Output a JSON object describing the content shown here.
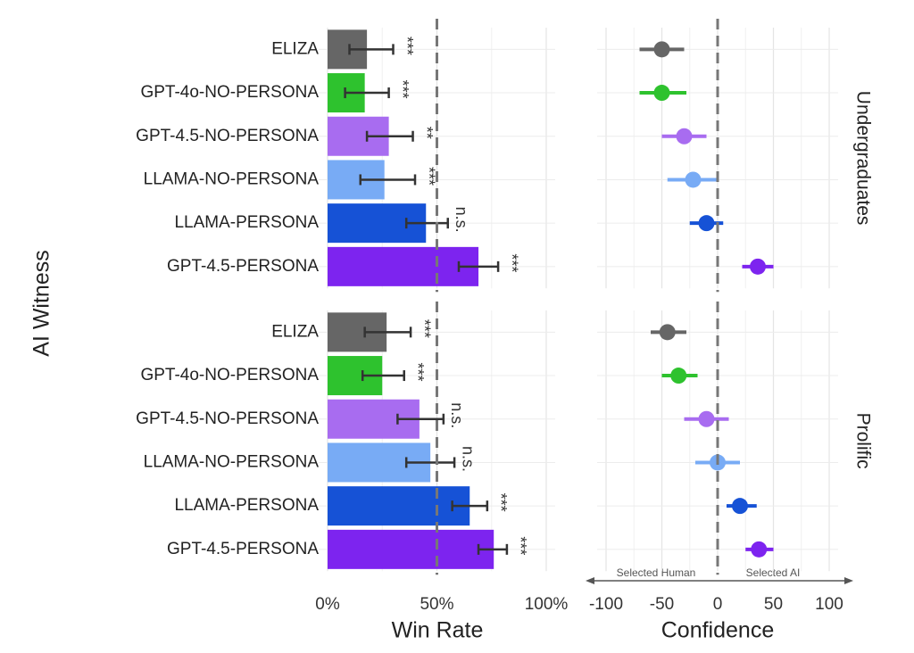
{
  "chart_data": [
    {
      "type": "bar",
      "orientation": "horizontal",
      "xlabel": "Win Rate",
      "ylabel": "AI Witness",
      "xlim": [
        0,
        100
      ],
      "xticks": [
        {
          "value": 0,
          "label": "0%"
        },
        {
          "value": 50,
          "label": "50%"
        },
        {
          "value": 100,
          "label": "100%"
        }
      ],
      "ref_line": 50,
      "colors": [
        "#666666",
        "#2ec22e",
        "#a86cf0",
        "#78abf5",
        "#1652d6",
        "#7d24ef"
      ],
      "facets": [
        {
          "categories": [
            "ELIZA",
            "GPT-4o-NO-PERSONA",
            "GPT-4.5-NO-PERSONA",
            "LLAMA-NO-PERSONA",
            "LLAMA-PERSONA",
            "GPT-4.5-PERSONA"
          ],
          "values": [
            18,
            17,
            28,
            26,
            45,
            69
          ],
          "ci_low": [
            10,
            8,
            18,
            15,
            36,
            60
          ],
          "ci_high": [
            30,
            28,
            39,
            40,
            55,
            78
          ],
          "significance": [
            "***",
            "***",
            "**",
            "***",
            "n.s.",
            "***"
          ]
        },
        {
          "categories": [
            "ELIZA",
            "GPT-4o-NO-PERSONA",
            "GPT-4.5-NO-PERSONA",
            "LLAMA-NO-PERSONA",
            "LLAMA-PERSONA",
            "GPT-4.5-PERSONA"
          ],
          "values": [
            27,
            25,
            42,
            47,
            65,
            76
          ],
          "ci_low": [
            17,
            16,
            32,
            36,
            57,
            69
          ],
          "ci_high": [
            38,
            35,
            53,
            58,
            73,
            82
          ],
          "significance": [
            "***",
            "***",
            "n.s.",
            "n.s.",
            "***",
            "***"
          ]
        }
      ]
    },
    {
      "type": "dot",
      "xlabel": "Confidence",
      "xlim": [
        -100,
        100
      ],
      "xticks": [
        -100,
        -50,
        0,
        50,
        100
      ],
      "ref_line": 0,
      "annotations": [
        "Selected Human",
        "Selected AI"
      ],
      "colors": [
        "#666666",
        "#2ec22e",
        "#a86cf0",
        "#78abf5",
        "#1652d6",
        "#7d24ef"
      ],
      "facets": [
        {
          "name": "Undergraduates",
          "values": [
            -50,
            -50,
            -30,
            -22,
            -10,
            36
          ],
          "ci_low": [
            -70,
            -70,
            -50,
            -45,
            -25,
            22
          ],
          "ci_high": [
            -30,
            -28,
            -10,
            0,
            5,
            50
          ]
        },
        {
          "name": "Prolific",
          "values": [
            -45,
            -35,
            -10,
            0,
            20,
            37
          ],
          "ci_low": [
            -60,
            -50,
            -30,
            -20,
            8,
            25
          ],
          "ci_high": [
            -28,
            -18,
            10,
            20,
            35,
            50
          ]
        }
      ]
    }
  ]
}
